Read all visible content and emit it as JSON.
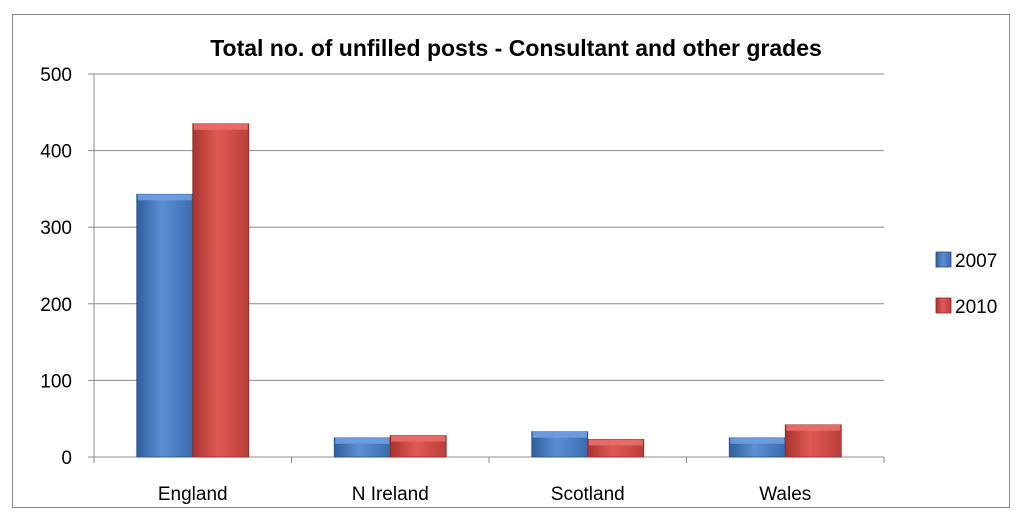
{
  "chart_data": {
    "type": "bar",
    "title": "Total no. of unfilled posts - Consultant and other grades",
    "xlabel": "",
    "ylabel": "",
    "categories": [
      "England",
      "N Ireland",
      "Scotland",
      "Wales"
    ],
    "series": [
      {
        "name": "2007",
        "values": [
          343,
          25,
          33,
          25
        ],
        "color": "#4a7ebb"
      },
      {
        "name": "2010",
        "values": [
          435,
          28,
          23,
          42
        ],
        "color": "#c0504d"
      }
    ],
    "ylim": [
      0,
      500
    ],
    "yticks": [
      0,
      100,
      200,
      300,
      400,
      500
    ],
    "grid": true,
    "legend": "right"
  }
}
